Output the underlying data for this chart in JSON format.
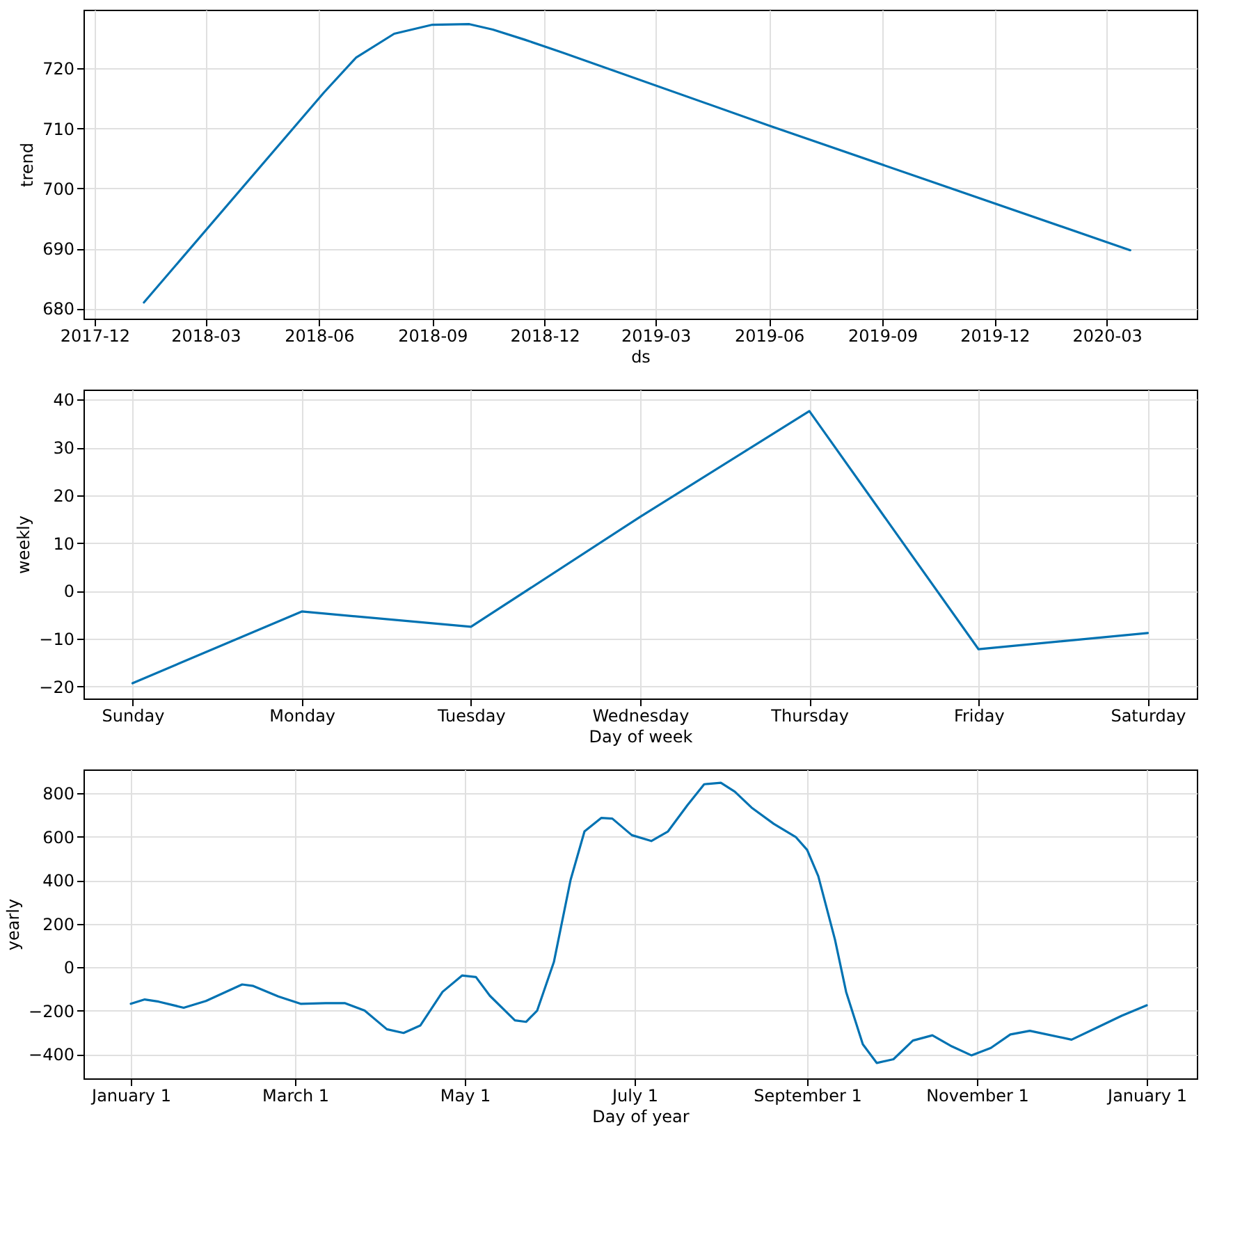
{
  "chart_data": [
    {
      "type": "line",
      "xlabel": "ds",
      "ylabel": "trend",
      "x": [
        "2018-01-10",
        "2018-06-05",
        "2018-07-01",
        "2018-08-01",
        "2018-09-01",
        "2018-10-01",
        "2018-10-20",
        "2018-11-15",
        "2018-12-15",
        "2019-06-01",
        "2020-03-20"
      ],
      "series": [
        {
          "color": "#0072b2",
          "values": [
            681,
            716,
            721.8,
            725.8,
            727.3,
            727.4,
            726.5,
            724.8,
            722.7,
            710.5,
            689.7
          ]
        }
      ],
      "xlim": [
        "2017-11-22",
        "2020-05-13"
      ],
      "ylim": [
        678.3,
        729.8
      ],
      "xticks": [
        "2017-12",
        "2018-03",
        "2018-06",
        "2018-09",
        "2018-12",
        "2019-03",
        "2019-06",
        "2019-09",
        "2019-12",
        "2020-03"
      ],
      "yticks": [
        680,
        690,
        700,
        710,
        720
      ],
      "grid": true
    },
    {
      "type": "line",
      "xlabel": "Day of week",
      "ylabel": "weekly",
      "categories": [
        "Sunday",
        "Monday",
        "Tuesday",
        "Wednesday",
        "Thursday",
        "Friday",
        "Saturday"
      ],
      "series": [
        {
          "color": "#0072b2",
          "values": [
            -19.3,
            -4.3,
            -7.5,
            15.5,
            37.6,
            -12.2,
            -8.8
          ]
        }
      ],
      "ylim": [
        -22.5,
        42.1
      ],
      "yticks": [
        -20,
        -10,
        0,
        10,
        20,
        30,
        40
      ],
      "grid": true
    },
    {
      "type": "line",
      "xlabel": "Day of year",
      "ylabel": "yearly",
      "x": [
        "2017-01-01",
        "2017-01-06",
        "2017-01-11",
        "2017-01-20",
        "2017-01-28",
        "2017-02-10",
        "2017-02-14",
        "2017-02-23",
        "2017-03-03",
        "2017-03-12",
        "2017-03-19",
        "2017-03-26",
        "2017-04-03",
        "2017-04-09",
        "2017-04-15",
        "2017-04-23",
        "2017-04-30",
        "2017-05-05",
        "2017-05-10",
        "2017-05-19",
        "2017-05-23",
        "2017-05-27",
        "2017-06-02",
        "2017-06-08",
        "2017-06-13",
        "2017-06-19",
        "2017-06-23",
        "2017-06-30",
        "2017-07-07",
        "2017-07-13",
        "2017-07-20",
        "2017-07-26",
        "2017-08-01",
        "2017-08-06",
        "2017-08-12",
        "2017-08-20",
        "2017-08-28",
        "2017-09-01",
        "2017-09-05",
        "2017-09-11",
        "2017-09-15",
        "2017-09-21",
        "2017-09-26",
        "2017-10-02",
        "2017-10-09",
        "2017-10-16",
        "2017-10-23",
        "2017-10-30",
        "2017-11-06",
        "2017-11-13",
        "2017-11-20",
        "2017-12-05",
        "2017-12-14",
        "2017-12-23",
        "2018-01-01"
      ],
      "series": [
        {
          "color": "#0072b2",
          "values": [
            -168,
            -148,
            -158,
            -186,
            -155,
            -79,
            -86,
            -134,
            -168,
            -165,
            -165,
            -199,
            -285,
            -302,
            -268,
            -113,
            -38,
            -45,
            -131,
            -244,
            -251,
            -199,
            24,
            402,
            625,
            687,
            684,
            608,
            581,
            625,
            746,
            842,
            849,
            808,
            735,
            660,
            598,
            540,
            419,
            127,
            -113,
            -354,
            -440,
            -423,
            -337,
            -313,
            -364,
            -405,
            -371,
            -309,
            -292,
            -333,
            -278,
            -223,
            -175
          ]
        }
      ],
      "xlim": [
        "2016-12-15",
        "2018-01-19"
      ],
      "ylim": [
        -511,
        910
      ],
      "xticks": [
        {
          "value": "2017-01-01",
          "label": "January 1"
        },
        {
          "value": "2017-03-01",
          "label": "March 1"
        },
        {
          "value": "2017-05-01",
          "label": "May 1"
        },
        {
          "value": "2017-07-01",
          "label": "July 1"
        },
        {
          "value": "2017-09-01",
          "label": "September 1"
        },
        {
          "value": "2017-11-01",
          "label": "November 1"
        },
        {
          "value": "2018-01-01",
          "label": "January 1"
        }
      ],
      "yticks": [
        -400,
        -200,
        0,
        200,
        400,
        600,
        800
      ],
      "grid": true
    }
  ]
}
